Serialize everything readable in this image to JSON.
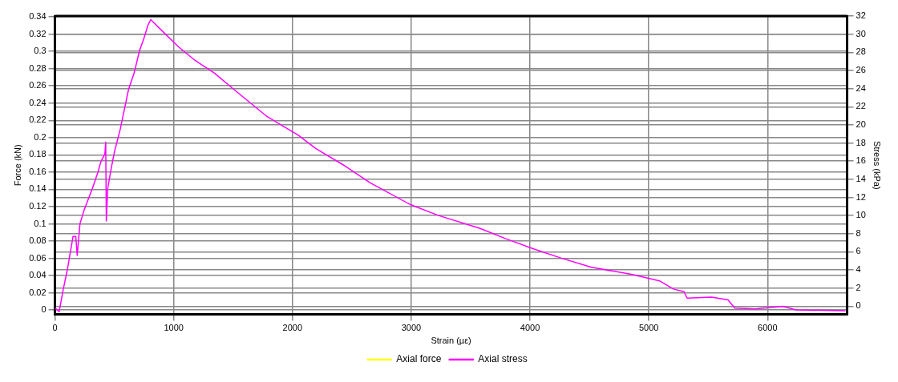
{
  "chart_data": {
    "type": "line",
    "xlabel": "Strain (µε)",
    "ylabel": "Force (kN)",
    "y2label": "Stress (kPa)",
    "x": [
      0,
      35,
      70,
      105,
      152,
      175,
      187,
      210,
      245,
      315,
      362,
      385,
      420,
      427,
      432,
      444,
      479,
      502,
      549,
      619,
      666,
      712,
      748,
      783,
      806,
      899,
      1040,
      1180,
      1343,
      1507,
      1647,
      1787,
      1927,
      2044,
      2195,
      2425,
      2655,
      2993,
      3230,
      3575,
      3805,
      4034,
      4264,
      4517,
      4862,
      5090,
      5207,
      5297,
      5322,
      5529,
      5667,
      5724,
      5897,
      6126,
      6241,
      6655
    ],
    "series": [
      {
        "name": "Axial force",
        "color": "#ffff00",
        "values": [
          null,
          null,
          null,
          null,
          null,
          null,
          null,
          null,
          null,
          null,
          null,
          null,
          null,
          null,
          null,
          null,
          null,
          null,
          null,
          null,
          null,
          null,
          null,
          null,
          null,
          null,
          null,
          null,
          null,
          null,
          null,
          null,
          null,
          null,
          null,
          null,
          null,
          null,
          null,
          null,
          null,
          null,
          null,
          null,
          null,
          null,
          null,
          null,
          null,
          null,
          null,
          null,
          null,
          null,
          null,
          null
        ]
      },
      {
        "name": "Axial stress",
        "color": "#ff00ff",
        "axis": "y2",
        "values": [
          -0.2,
          -0.6,
          1.9,
          4.1,
          7.7,
          7.7,
          5.6,
          9.1,
          10.6,
          13.0,
          14.8,
          15.9,
          16.8,
          18.1,
          9.4,
          13.0,
          15.6,
          17.1,
          19.5,
          23.9,
          25.7,
          28.2,
          29.5,
          31.0,
          31.6,
          30.4,
          28.6,
          27.1,
          25.7,
          23.9,
          22.4,
          20.9,
          19.8,
          18.9,
          17.4,
          15.6,
          13.6,
          11.2,
          10.0,
          8.6,
          7.4,
          6.3,
          5.3,
          4.3,
          3.5,
          2.8,
          1.9,
          1.6,
          0.9,
          1.0,
          0.7,
          -0.2,
          -0.3,
          0.0,
          -0.4,
          -0.5
        ]
      }
    ],
    "xlim": [
      0,
      6670
    ],
    "xticks": [
      0,
      1000,
      2000,
      3000,
      4000,
      5000,
      6000
    ],
    "ylim": [
      -0.005,
      0.341
    ],
    "yticks": [
      0,
      0.02,
      0.04,
      0.06,
      0.08,
      0.1,
      0.12,
      0.14,
      0.16,
      0.18,
      0.2,
      0.22,
      0.24,
      0.26,
      0.28,
      0.3,
      0.32,
      0.34
    ],
    "y2lim": [
      -0.9,
      32
    ],
    "y2ticks": [
      0,
      2,
      4,
      6,
      8,
      10,
      12,
      14,
      16,
      18,
      20,
      22,
      24,
      26,
      28,
      30,
      32
    ],
    "grid": true,
    "legend": "bottom",
    "marker": "none",
    "line_style": "solid"
  }
}
